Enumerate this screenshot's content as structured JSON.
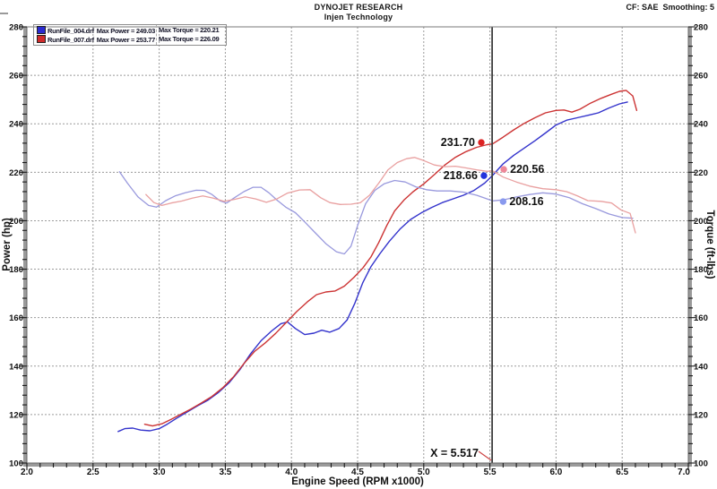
{
  "header": {
    "brand": "DYNOJET RESEARCH",
    "subtitle": "Injen Technology",
    "right": "CF: SAE  Smoothing: 5"
  },
  "legend": {
    "rows": [
      {
        "file": "RunFile_004.drf",
        "power": "Max Power = 249.03",
        "torque": "Max Torque = 220.21",
        "color": "#2b2bd0"
      },
      {
        "file": "RunFile_007.drf",
        "power": "Max Power = 253.77",
        "torque": "Max Torque = 226.09",
        "color": "#d02b2b"
      }
    ]
  },
  "cursor": {
    "label": "X = 5.517",
    "x": 5.517,
    "color": "#3d3d3d",
    "connector_color": "#cc4444"
  },
  "chart_data": {
    "type": "line",
    "title": "DYNOJET RESEARCH - Injen Technology",
    "xlabel": "Engine Speed (RPM x1000)",
    "ylabel_left": "Power (hp)",
    "ylabel_right": "Torque (ft-lbs)",
    "xlim": [
      2.0,
      7.0
    ],
    "ylim": [
      100,
      280
    ],
    "x_major": 0.5,
    "x_minor": 0.1,
    "y_major": 20,
    "y_minor": 4,
    "grid": "dashed",
    "legend_position": "top-left",
    "series": [
      {
        "name": "RunFile_004.drf Power (hp)",
        "axis": "left",
        "color": "#3333cc",
        "width": 1.4,
        "points": [
          [
            2.69,
            113.0
          ],
          [
            2.74,
            114.2
          ],
          [
            2.8,
            114.4
          ],
          [
            2.86,
            113.6
          ],
          [
            2.93,
            113.3
          ],
          [
            3.0,
            114.2
          ],
          [
            3.06,
            116.0
          ],
          [
            3.13,
            118.4
          ],
          [
            3.21,
            121.0
          ],
          [
            3.29,
            123.6
          ],
          [
            3.37,
            126.0
          ],
          [
            3.45,
            129.2
          ],
          [
            3.53,
            133.2
          ],
          [
            3.61,
            138.5
          ],
          [
            3.69,
            145.0
          ],
          [
            3.77,
            150.5
          ],
          [
            3.85,
            154.5
          ],
          [
            3.92,
            157.5
          ],
          [
            3.97,
            158.2
          ],
          [
            4.03,
            155.5
          ],
          [
            4.1,
            153.0
          ],
          [
            4.17,
            153.6
          ],
          [
            4.23,
            154.8
          ],
          [
            4.29,
            154.0
          ],
          [
            4.36,
            155.5
          ],
          [
            4.42,
            159.0
          ],
          [
            4.48,
            166.0
          ],
          [
            4.54,
            174.5
          ],
          [
            4.6,
            181.0
          ],
          [
            4.67,
            186.5
          ],
          [
            4.74,
            191.5
          ],
          [
            4.82,
            196.5
          ],
          [
            4.9,
            200.5
          ],
          [
            4.98,
            203.2
          ],
          [
            5.06,
            205.5
          ],
          [
            5.14,
            207.5
          ],
          [
            5.22,
            209.0
          ],
          [
            5.3,
            210.5
          ],
          [
            5.38,
            212.5
          ],
          [
            5.46,
            215.5
          ],
          [
            5.52,
            218.7
          ],
          [
            5.6,
            223.5
          ],
          [
            5.68,
            227.0
          ],
          [
            5.76,
            230.0
          ],
          [
            5.84,
            233.0
          ],
          [
            5.92,
            236.2
          ],
          [
            6.0,
            239.5
          ],
          [
            6.08,
            241.5
          ],
          [
            6.16,
            242.5
          ],
          [
            6.24,
            243.5
          ],
          [
            6.32,
            244.5
          ],
          [
            6.4,
            246.5
          ],
          [
            6.48,
            248.2
          ],
          [
            6.54,
            249.0
          ]
        ]
      },
      {
        "name": "RunFile_007.drf Power (hp)",
        "axis": "left",
        "color": "#cc3333",
        "width": 1.4,
        "points": [
          [
            2.89,
            116.0
          ],
          [
            2.95,
            115.3
          ],
          [
            3.02,
            116.2
          ],
          [
            3.09,
            118.0
          ],
          [
            3.16,
            120.0
          ],
          [
            3.24,
            122.3
          ],
          [
            3.32,
            124.8
          ],
          [
            3.4,
            127.5
          ],
          [
            3.48,
            131.0
          ],
          [
            3.56,
            135.5
          ],
          [
            3.64,
            141.0
          ],
          [
            3.72,
            146.0
          ],
          [
            3.8,
            149.5
          ],
          [
            3.88,
            153.5
          ],
          [
            3.96,
            158.0
          ],
          [
            4.04,
            162.5
          ],
          [
            4.12,
            166.5
          ],
          [
            4.19,
            169.5
          ],
          [
            4.26,
            170.6
          ],
          [
            4.33,
            171.0
          ],
          [
            4.4,
            173.0
          ],
          [
            4.47,
            176.5
          ],
          [
            4.54,
            180.5
          ],
          [
            4.6,
            185.0
          ],
          [
            4.66,
            191.0
          ],
          [
            4.72,
            198.0
          ],
          [
            4.78,
            204.0
          ],
          [
            4.85,
            208.5
          ],
          [
            4.92,
            212.0
          ],
          [
            5.0,
            215.2
          ],
          [
            5.08,
            219.0
          ],
          [
            5.16,
            223.0
          ],
          [
            5.24,
            226.2
          ],
          [
            5.32,
            228.5
          ],
          [
            5.4,
            230.3
          ],
          [
            5.48,
            231.4
          ],
          [
            5.52,
            231.7
          ],
          [
            5.6,
            234.5
          ],
          [
            5.68,
            237.5
          ],
          [
            5.76,
            240.2
          ],
          [
            5.84,
            242.5
          ],
          [
            5.92,
            244.5
          ],
          [
            6.0,
            245.5
          ],
          [
            6.06,
            245.7
          ],
          [
            6.12,
            244.8
          ],
          [
            6.18,
            246.0
          ],
          [
            6.26,
            248.5
          ],
          [
            6.34,
            250.5
          ],
          [
            6.42,
            252.2
          ],
          [
            6.48,
            253.4
          ],
          [
            6.53,
            253.8
          ],
          [
            6.58,
            251.5
          ],
          [
            6.61,
            245.5
          ]
        ]
      },
      {
        "name": "RunFile_004.drf Torque (ft-lbs)",
        "axis": "right",
        "color": "#9999dd",
        "width": 1.3,
        "points": [
          [
            2.7,
            220.2
          ],
          [
            2.76,
            215.5
          ],
          [
            2.84,
            209.8
          ],
          [
            2.92,
            206.3
          ],
          [
            2.98,
            205.6
          ],
          [
            3.05,
            208.3
          ],
          [
            3.12,
            210.2
          ],
          [
            3.2,
            211.6
          ],
          [
            3.28,
            212.6
          ],
          [
            3.34,
            212.5
          ],
          [
            3.4,
            210.8
          ],
          [
            3.46,
            208.2
          ],
          [
            3.51,
            207.3
          ],
          [
            3.57,
            209.5
          ],
          [
            3.64,
            212.0
          ],
          [
            3.71,
            213.8
          ],
          [
            3.77,
            213.8
          ],
          [
            3.83,
            211.5
          ],
          [
            3.89,
            208.5
          ],
          [
            3.96,
            205.5
          ],
          [
            4.03,
            203.3
          ],
          [
            4.1,
            199.5
          ],
          [
            4.18,
            195.0
          ],
          [
            4.26,
            190.5
          ],
          [
            4.34,
            187.2
          ],
          [
            4.4,
            186.3
          ],
          [
            4.45,
            189.5
          ],
          [
            4.5,
            198.0
          ],
          [
            4.56,
            207.0
          ],
          [
            4.63,
            212.5
          ],
          [
            4.7,
            215.2
          ],
          [
            4.78,
            216.6
          ],
          [
            4.86,
            216.0
          ],
          [
            4.94,
            214.0
          ],
          [
            5.02,
            212.8
          ],
          [
            5.1,
            212.3
          ],
          [
            5.2,
            212.3
          ],
          [
            5.3,
            211.8
          ],
          [
            5.4,
            210.5
          ],
          [
            5.47,
            209.2
          ],
          [
            5.52,
            208.2
          ],
          [
            5.6,
            208.6
          ],
          [
            5.7,
            209.8
          ],
          [
            5.8,
            210.8
          ],
          [
            5.9,
            211.5
          ],
          [
            6.0,
            211.0
          ],
          [
            6.1,
            209.5
          ],
          [
            6.2,
            207.0
          ],
          [
            6.3,
            205.0
          ],
          [
            6.4,
            202.8
          ],
          [
            6.5,
            201.3
          ],
          [
            6.58,
            201.0
          ]
        ]
      },
      {
        "name": "RunFile_007.drf Torque (ft-lbs)",
        "axis": "right",
        "color": "#e9a0a0",
        "width": 1.3,
        "points": [
          [
            2.9,
            210.8
          ],
          [
            2.96,
            207.5
          ],
          [
            3.02,
            206.3
          ],
          [
            3.09,
            207.3
          ],
          [
            3.17,
            208.1
          ],
          [
            3.25,
            209.3
          ],
          [
            3.33,
            210.2
          ],
          [
            3.41,
            209.3
          ],
          [
            3.49,
            208.0
          ],
          [
            3.57,
            208.8
          ],
          [
            3.65,
            209.9
          ],
          [
            3.73,
            209.0
          ],
          [
            3.81,
            207.6
          ],
          [
            3.89,
            209.0
          ],
          [
            3.97,
            211.4
          ],
          [
            4.06,
            212.7
          ],
          [
            4.14,
            212.8
          ],
          [
            4.22,
            209.5
          ],
          [
            4.29,
            207.5
          ],
          [
            4.37,
            206.7
          ],
          [
            4.45,
            206.8
          ],
          [
            4.52,
            207.4
          ],
          [
            4.59,
            210.5
          ],
          [
            4.66,
            215.5
          ],
          [
            4.73,
            221.0
          ],
          [
            4.8,
            224.0
          ],
          [
            4.87,
            225.6
          ],
          [
            4.93,
            226.1
          ],
          [
            5.0,
            224.8
          ],
          [
            5.08,
            223.0
          ],
          [
            5.16,
            222.3
          ],
          [
            5.24,
            222.5
          ],
          [
            5.32,
            221.8
          ],
          [
            5.4,
            221.0
          ],
          [
            5.48,
            220.4
          ],
          [
            5.52,
            220.6
          ],
          [
            5.6,
            218.0
          ],
          [
            5.7,
            216.0
          ],
          [
            5.8,
            214.3
          ],
          [
            5.9,
            213.2
          ],
          [
            6.0,
            212.8
          ],
          [
            6.08,
            212.0
          ],
          [
            6.16,
            210.3
          ],
          [
            6.24,
            208.3
          ],
          [
            6.34,
            208.0
          ],
          [
            6.42,
            207.3
          ],
          [
            6.49,
            204.5
          ],
          [
            6.56,
            203.0
          ],
          [
            6.6,
            195.0
          ]
        ]
      }
    ],
    "annotations": [
      {
        "text": "231.70",
        "dot_color": "#dd2222",
        "dot": [
          5.435,
          232.3
        ],
        "side": "left",
        "meaning": "RunFile_007 power at cursor"
      },
      {
        "text": "218.66",
        "dot_color": "#2233dd",
        "dot": [
          5.455,
          218.6
        ],
        "side": "left",
        "meaning": "RunFile_004 power at cursor"
      },
      {
        "text": "220.56",
        "dot_color": "#ee8899",
        "dot": [
          5.605,
          221.2
        ],
        "side": "right",
        "meaning": "RunFile_007 torque at cursor"
      },
      {
        "text": "208.16",
        "dot_color": "#8899ee",
        "dot": [
          5.6,
          207.9
        ],
        "side": "right",
        "meaning": "RunFile_004 torque at cursor"
      }
    ]
  }
}
